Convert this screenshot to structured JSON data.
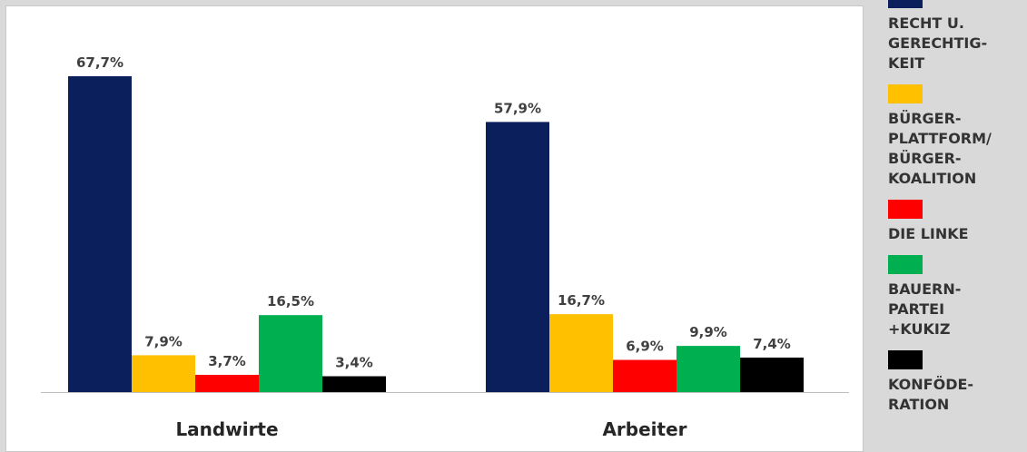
{
  "chart_data": {
    "type": "bar",
    "categories": [
      "Landwirte",
      "Arbeiter"
    ],
    "series": [
      {
        "name": "RECHT U. GERECHTIG-\nKEIT",
        "color": "#0a1f5c",
        "values": [
          67.7,
          57.9
        ],
        "labels": [
          "67,7%",
          "57,9%"
        ]
      },
      {
        "name": "BÜRGER-\nPLATTFORM/\nBÜRGER-\nKOALITION",
        "color": "#ffc000",
        "values": [
          7.9,
          16.7
        ],
        "labels": [
          "7,9%",
          "16,7%"
        ]
      },
      {
        "name": "DIE LINKE",
        "color": "#ff0000",
        "values": [
          3.7,
          6.9
        ],
        "labels": [
          "3,7%",
          "6,9%"
        ]
      },
      {
        "name": "BAUERN-\nPARTEI\n+KUKIZ",
        "color": "#00b050",
        "values": [
          16.5,
          9.9
        ],
        "labels": [
          "16,5%",
          "9,9%"
        ]
      },
      {
        "name": "KONFÖDE-\nRATION",
        "color": "#000000",
        "values": [
          3.4,
          7.4
        ],
        "labels": [
          "3,4%",
          "7,4%"
        ]
      }
    ],
    "legend_position": "right",
    "ylim": [
      0,
      70
    ],
    "grid": false
  }
}
